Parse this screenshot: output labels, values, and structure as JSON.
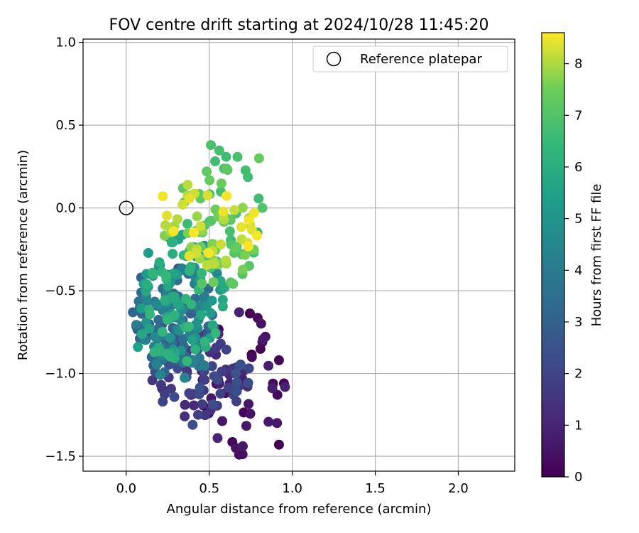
{
  "chart_data": {
    "type": "scatter",
    "title": "FOV centre drift starting at 2024/10/28 11:45:20",
    "xlabel": "Angular distance from reference (arcmin)",
    "ylabel": "Rotation from reference (arcmin)",
    "xlim": [
      -0.26,
      2.34
    ],
    "ylim": [
      -1.59,
      1.02
    ],
    "xticks": [
      0.0,
      0.5,
      1.0,
      1.5,
      2.0
    ],
    "xtick_labels": [
      "0.0",
      "0.5",
      "1.0",
      "1.5",
      "2.0"
    ],
    "yticks": [
      -1.5,
      -1.0,
      -0.5,
      0.0,
      0.5,
      1.0
    ],
    "ytick_labels": [
      "−1.5",
      "−1.0",
      "−0.5",
      "0.0",
      "0.5",
      "1.0"
    ],
    "grid": true,
    "legend": {
      "position": "top-right",
      "entries": [
        {
          "label": "Reference platepar",
          "marker": "open-circle"
        }
      ]
    },
    "reference_point": {
      "x": 0.0,
      "y": 0.0
    },
    "colorbar": {
      "label": "Hours from first FF file",
      "colormap": "viridis",
      "range": [
        0,
        8.6
      ],
      "ticks": [
        0,
        1,
        2,
        3,
        4,
        5,
        6,
        7,
        8
      ],
      "tick_labels": [
        "0",
        "1",
        "2",
        "3",
        "4",
        "5",
        "6",
        "7",
        "8"
      ]
    },
    "clusters": [
      {
        "hours": [
          0.0,
          1.0
        ],
        "x_range": [
          0.45,
          0.98
        ],
        "y_range": [
          -1.5,
          -0.62
        ],
        "count": 40
      },
      {
        "hours": [
          1.0,
          2.5
        ],
        "x_range": [
          0.15,
          0.75
        ],
        "y_range": [
          -1.33,
          -0.7
        ],
        "count": 80
      },
      {
        "hours": [
          2.5,
          4.5
        ],
        "x_range": [
          0.05,
          0.55
        ],
        "y_range": [
          -1.05,
          -0.35
        ],
        "count": 110
      },
      {
        "hours": [
          4.5,
          6.5
        ],
        "x_range": [
          0.05,
          0.6
        ],
        "y_range": [
          -0.95,
          -0.15
        ],
        "count": 110
      },
      {
        "hours": [
          6.5,
          7.6
        ],
        "x_range": [
          0.3,
          0.82
        ],
        "y_range": [
          -0.5,
          0.38
        ],
        "count": 60
      },
      {
        "hours": [
          7.6,
          8.6
        ],
        "x_range": [
          0.2,
          0.8
        ],
        "y_range": [
          -0.35,
          0.1
        ],
        "count": 45
      }
    ],
    "points": [
      {
        "x": 0.51,
        "y": 0.38,
        "hours": 6.9
      },
      {
        "x": 0.8,
        "y": 0.3,
        "hours": 7.4
      },
      {
        "x": 0.22,
        "y": 0.07,
        "hours": 8.5
      },
      {
        "x": 0.82,
        "y": 0.0,
        "hours": 7.0
      },
      {
        "x": 0.09,
        "y": -0.42,
        "hours": 3.0
      },
      {
        "x": 0.04,
        "y": -0.63,
        "hours": 3.2
      },
      {
        "x": 0.68,
        "y": -0.63,
        "hours": 0.9
      },
      {
        "x": 0.82,
        "y": -0.81,
        "hours": 0.2
      },
      {
        "x": 0.92,
        "y": -0.92,
        "hours": 0.1
      },
      {
        "x": 0.95,
        "y": -1.06,
        "hours": 0.0
      },
      {
        "x": 0.92,
        "y": -1.43,
        "hours": 0.0
      },
      {
        "x": 0.68,
        "y": -1.49,
        "hours": 0.3
      },
      {
        "x": 0.66,
        "y": -1.45,
        "hours": 0.5
      },
      {
        "x": 0.55,
        "y": -1.39,
        "hours": 1.0
      },
      {
        "x": 0.4,
        "y": -1.31,
        "hours": 2.4
      },
      {
        "x": 0.22,
        "y": -1.17,
        "hours": 2.0
      },
      {
        "x": 0.07,
        "y": -0.84,
        "hours": 5.4
      },
      {
        "x": 0.74,
        "y": -0.35,
        "hours": 7.1
      },
      {
        "x": 0.7,
        "y": -0.4,
        "hours": 7.0
      },
      {
        "x": 0.73,
        "y": -0.21,
        "hours": 8.3
      },
      {
        "x": 0.77,
        "y": -0.03,
        "hours": 8.5
      },
      {
        "x": 0.61,
        "y": 0.23,
        "hours": 7.2
      },
      {
        "x": 0.37,
        "y": 0.14,
        "hours": 8.1
      },
      {
        "x": 0.38,
        "y": -0.29,
        "hours": 8.4
      }
    ]
  }
}
